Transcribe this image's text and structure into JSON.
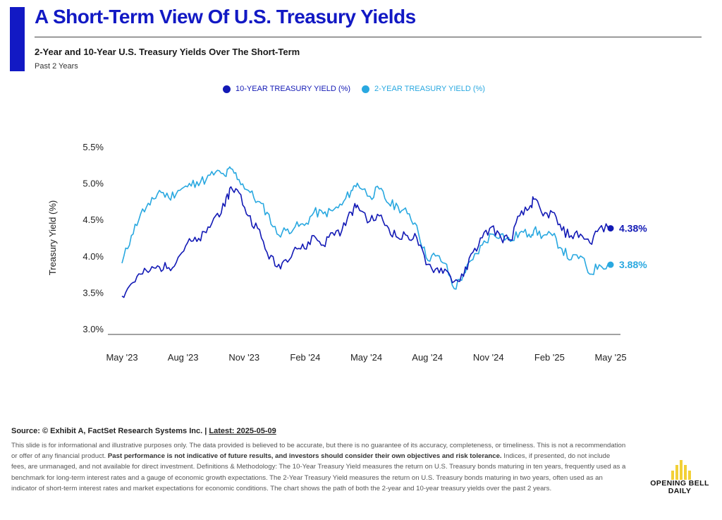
{
  "header": {
    "title": "A Short-Term View Of U.S. Treasury Yields",
    "subtitle": "2-Year and 10-Year U.S. Treasury Yields Over The Short-Term",
    "period": "Past 2 Years"
  },
  "colors": {
    "accent": "#1219c4",
    "ten_year": "#1219b5",
    "two_year": "#29a8e0",
    "logo": "#f2d037"
  },
  "chart_data": {
    "type": "line",
    "title": "",
    "xlabel": "",
    "ylabel": "Treasury Yield (%)",
    "ylim": [
      3.0,
      5.5
    ],
    "yticks": [
      3.0,
      3.5,
      4.0,
      4.5,
      5.0,
      5.5
    ],
    "ytick_labels": [
      "3.0%",
      "3.5%",
      "4.0%",
      "4.5%",
      "5.0%",
      "5.5%"
    ],
    "x_range": [
      "2023-05-09",
      "2025-05-09"
    ],
    "x_tick_labels": [
      "May '23",
      "Aug '23",
      "Nov '23",
      "Feb '24",
      "May '24",
      "Aug '24",
      "Nov '24",
      "Feb '25",
      "May '25"
    ],
    "grid": false,
    "legend_position": "top-center",
    "x": [
      "2023-05-09",
      "2023-05-23",
      "2023-06-06",
      "2023-06-20",
      "2023-07-04",
      "2023-07-18",
      "2023-08-01",
      "2023-08-15",
      "2023-08-29",
      "2023-09-12",
      "2023-09-26",
      "2023-10-10",
      "2023-10-19",
      "2023-10-31",
      "2023-11-14",
      "2023-11-28",
      "2023-12-12",
      "2023-12-27",
      "2024-01-09",
      "2024-01-23",
      "2024-02-06",
      "2024-02-20",
      "2024-03-05",
      "2024-03-19",
      "2024-04-02",
      "2024-04-16",
      "2024-04-25",
      "2024-05-14",
      "2024-05-28",
      "2024-06-11",
      "2024-06-25",
      "2024-07-09",
      "2024-07-23",
      "2024-08-06",
      "2024-08-20",
      "2024-09-03",
      "2024-09-17",
      "2024-10-01",
      "2024-10-15",
      "2024-10-29",
      "2024-11-12",
      "2024-11-26",
      "2024-12-10",
      "2024-12-24",
      "2025-01-07",
      "2025-01-14",
      "2025-01-28",
      "2025-02-11",
      "2025-02-25",
      "2025-03-11",
      "2025-03-25",
      "2025-04-08",
      "2025-04-22",
      "2025-05-09"
    ],
    "series": [
      {
        "name": "10-YEAR TREASURY YIELD (%)",
        "values": [
          3.45,
          3.62,
          3.75,
          3.8,
          3.85,
          3.84,
          3.98,
          4.18,
          4.2,
          4.32,
          4.55,
          4.68,
          4.95,
          4.87,
          4.55,
          4.38,
          4.05,
          3.85,
          3.95,
          4.12,
          4.1,
          4.28,
          4.15,
          4.32,
          4.35,
          4.6,
          4.7,
          4.48,
          4.55,
          4.38,
          4.25,
          4.28,
          4.25,
          3.88,
          3.82,
          3.82,
          3.65,
          3.72,
          4.05,
          4.25,
          4.4,
          4.25,
          4.22,
          4.55,
          4.65,
          4.78,
          4.55,
          4.6,
          4.35,
          4.28,
          4.3,
          4.18,
          4.38,
          4.38
        ]
      },
      {
        "name": "2-YEAR TREASURY YIELD (%)",
        "values": [
          3.9,
          4.28,
          4.58,
          4.7,
          4.9,
          4.8,
          4.9,
          4.95,
          5.02,
          5.05,
          5.15,
          5.1,
          5.2,
          5.05,
          4.9,
          4.75,
          4.6,
          4.3,
          4.35,
          4.4,
          4.42,
          4.6,
          4.58,
          4.62,
          4.7,
          4.9,
          5.0,
          4.82,
          4.92,
          4.72,
          4.68,
          4.58,
          4.42,
          3.98,
          4.0,
          3.9,
          3.55,
          3.75,
          3.95,
          4.15,
          4.3,
          4.3,
          4.2,
          4.32,
          4.3,
          4.35,
          4.28,
          4.28,
          4.1,
          3.95,
          4.0,
          3.75,
          3.88,
          3.88
        ]
      }
    ],
    "end_labels": [
      "4.38%",
      "3.88%"
    ]
  },
  "footer": {
    "source_label": "Source: © Exhibit A, FactSet Research Systems Inc. | ",
    "latest": "Latest: 2025-05-09",
    "disclaimer_1": "This slide is for informational and illustrative purposes only. The data provided is believed to be accurate, but there is no guarantee of its accuracy, completeness, or timeliness. This is not a recommendation or offer of any financial product. ",
    "disclaimer_bold": "Past performance is not indicative of future results, and investors should consider their own objectives and risk tolerance.",
    "disclaimer_2": " Indices, if presented, do not include fees, are unmanaged, and not available for direct investment. Definitions & Methodology: The 10-Year Treasury Yield measures the return on U.S. Treasury bonds maturing in ten years, frequently used as a benchmark for long-term interest rates and a gauge of economic growth expectations. The 2-Year Treasury Yield measures the return on U.S. Treasury bonds maturing in two years, often used as an indicator of short-term interest rates and market expectations for economic conditions. The chart shows the path of both the 2-year and 10-year treasury yields over the past 2 years."
  },
  "logo": {
    "line1": "OPENING BELL",
    "line2": "DAILY",
    "bar_levels": [
      0.45,
      0.75,
      1.0,
      0.75,
      0.45
    ]
  }
}
